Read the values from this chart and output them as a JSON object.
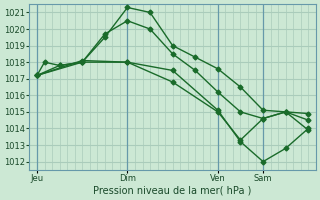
{
  "background_color": "#cce8d4",
  "grid_color": "#aaccbb",
  "line_color": "#1a6b2a",
  "marker_color": "#1a6b2a",
  "ylabel_text": "Pression niveau de la mer( hPa )",
  "x_ticks": [
    0,
    6,
    12,
    18,
    24,
    30,
    36
  ],
  "x_tick_labels": [
    "Jeu",
    "",
    "Dim",
    "",
    "Ven",
    "",
    "Sam"
  ],
  "x_vlines": [
    0,
    12,
    24,
    30
  ],
  "ylim": [
    1011.5,
    1021.5
  ],
  "yticks": [
    1012,
    1013,
    1014,
    1015,
    1016,
    1017,
    1018,
    1019,
    1020,
    1021
  ],
  "series": [
    [
      0,
      1017.2,
      1,
      1018.0,
      3,
      1017.8,
      6,
      1018.0,
      9,
      1019.5,
      12,
      1021.3,
      15,
      1021.0,
      18,
      1019.0,
      21,
      1018.3,
      24,
      1017.6,
      27,
      1016.5,
      30,
      1015.1,
      33,
      1015.0,
      36,
      1014.9
    ],
    [
      0,
      1017.2,
      3,
      1017.8,
      6,
      1018.0,
      9,
      1019.7,
      12,
      1020.5,
      15,
      1020.0,
      18,
      1018.5,
      21,
      1017.5,
      24,
      1016.2,
      27,
      1015.0,
      30,
      1014.6,
      33,
      1015.0,
      36,
      1014.5
    ],
    [
      0,
      1017.2,
      6,
      1018.1,
      12,
      1018.0,
      18,
      1017.5,
      24,
      1015.1,
      27,
      1013.2,
      30,
      1012.0,
      33,
      1012.8,
      36,
      1014.0
    ],
    [
      0,
      1017.2,
      6,
      1018.0,
      12,
      1018.0,
      18,
      1016.8,
      24,
      1015.0,
      27,
      1013.3,
      30,
      1014.6,
      33,
      1015.0,
      36,
      1013.9
    ]
  ]
}
